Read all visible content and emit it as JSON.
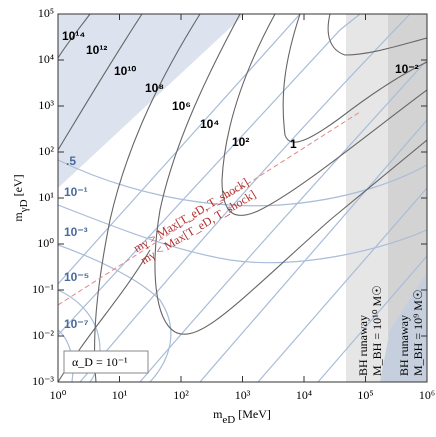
{
  "chart_data": {
    "type": "contour",
    "x_label": {
      "symbol": "m",
      "sub": "eD",
      "unit": "[MeV]"
    },
    "y_label": {
      "symbol": "m",
      "sub": "γD",
      "unit": "[eV]"
    },
    "xscale": "log",
    "yscale": "log",
    "xlim": [
      1,
      1000000
    ],
    "ylim": [
      0.001,
      100000
    ],
    "xticks": [
      {
        "value": 1,
        "label": "10⁰"
      },
      {
        "value": 10,
        "label": "10¹"
      },
      {
        "value": 100,
        "label": "10²"
      },
      {
        "value": 1000,
        "label": "10³"
      },
      {
        "value": 10000,
        "label": "10⁴"
      },
      {
        "value": 100000,
        "label": "10⁵"
      },
      {
        "value": 1000000,
        "label": "10⁶"
      }
    ],
    "yticks": [
      {
        "value": 0.001,
        "label": "10⁻³"
      },
      {
        "value": 0.01,
        "label": "10⁻²"
      },
      {
        "value": 0.1,
        "label": "10⁻¹"
      },
      {
        "value": 1,
        "label": "10⁰"
      },
      {
        "value": 10,
        "label": "10¹"
      },
      {
        "value": 100,
        "label": "10²"
      },
      {
        "value": 1000,
        "label": "10³"
      },
      {
        "value": 10000,
        "label": "10⁴"
      },
      {
        "value": 100000,
        "label": "10⁵"
      }
    ],
    "black_contour_labels": [
      "10¹⁴",
      "10¹²",
      "10¹⁰",
      "10⁸",
      "10⁶",
      "10⁴",
      "10²",
      "1",
      "10⁻²"
    ],
    "blue_contour_labels": [
      ".5",
      "10⁻¹",
      "10⁻³",
      "10⁻⁵",
      "10⁻⁷"
    ],
    "coupling_label": "α_D = 10⁻¹",
    "red_labels": [
      "mγ > Max[T_eD, T_shock]",
      "mγ < Max[T_eD, T_shock]"
    ],
    "band_labels": [
      [
        "BH runaway",
        "M_BH = 10¹⁰ M☉"
      ],
      [
        "BH runaway",
        "M_BH = 10⁹ M☉"
      ]
    ]
  }
}
